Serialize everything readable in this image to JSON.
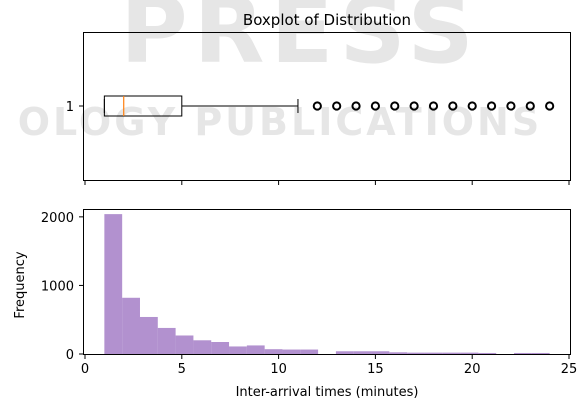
{
  "watermark": {
    "lines": [
      "PRESS",
      "OLOGY PUBLICATIONS"
    ]
  },
  "chart_data": [
    {
      "type": "boxplot",
      "title": "Boxplot of Distribution",
      "category_label": "1",
      "box": {
        "whisker_low": 1.0,
        "q1": 1.0,
        "median": 2.0,
        "q3": 5.0,
        "whisker_high": 11.0
      },
      "outliers": [
        12,
        13,
        14,
        15,
        16,
        17,
        18,
        19,
        20,
        21,
        22,
        23,
        24
      ],
      "xlim": [
        0,
        25
      ],
      "colors": {
        "box": "#000000",
        "median": "#ff7f0e"
      }
    },
    {
      "type": "histogram",
      "xlabel": "Inter-arrival times (minutes)",
      "ylabel": "Frequency",
      "xlim": [
        0,
        25
      ],
      "ylim": [
        0,
        2100
      ],
      "xticks": [
        0,
        5,
        10,
        15,
        20,
        25
      ],
      "yticks": [
        0,
        1000,
        2000
      ],
      "color": "#9467bd",
      "bins": [
        {
          "x0": 1.0,
          "x1": 1.92,
          "count": 2040
        },
        {
          "x0": 1.92,
          "x1": 2.84,
          "count": 820
        },
        {
          "x0": 2.84,
          "x1": 3.76,
          "count": 540
        },
        {
          "x0": 3.76,
          "x1": 4.68,
          "count": 380
        },
        {
          "x0": 4.68,
          "x1": 5.6,
          "count": 270
        },
        {
          "x0": 5.6,
          "x1": 6.52,
          "count": 200
        },
        {
          "x0": 6.52,
          "x1": 7.44,
          "count": 175
        },
        {
          "x0": 7.44,
          "x1": 8.36,
          "count": 110
        },
        {
          "x0": 8.36,
          "x1": 9.28,
          "count": 125
        },
        {
          "x0": 9.28,
          "x1": 10.2,
          "count": 70
        },
        {
          "x0": 10.2,
          "x1": 11.12,
          "count": 65
        },
        {
          "x0": 11.12,
          "x1": 12.04,
          "count": 65
        },
        {
          "x0": 12.04,
          "x1": 12.96,
          "count": 0
        },
        {
          "x0": 12.96,
          "x1": 13.88,
          "count": 40
        },
        {
          "x0": 13.88,
          "x1": 14.8,
          "count": 40
        },
        {
          "x0": 14.8,
          "x1": 15.72,
          "count": 40
        },
        {
          "x0": 15.72,
          "x1": 16.64,
          "count": 25
        },
        {
          "x0": 16.64,
          "x1": 17.56,
          "count": 20
        },
        {
          "x0": 17.56,
          "x1": 18.48,
          "count": 20
        },
        {
          "x0": 18.48,
          "x1": 19.4,
          "count": 20
        },
        {
          "x0": 19.4,
          "x1": 20.32,
          "count": 20
        },
        {
          "x0": 20.32,
          "x1": 21.24,
          "count": 15
        },
        {
          "x0": 21.24,
          "x1": 22.16,
          "count": 0
        },
        {
          "x0": 22.16,
          "x1": 23.08,
          "count": 15
        },
        {
          "x0": 23.08,
          "x1": 24.0,
          "count": 15
        }
      ]
    }
  ]
}
